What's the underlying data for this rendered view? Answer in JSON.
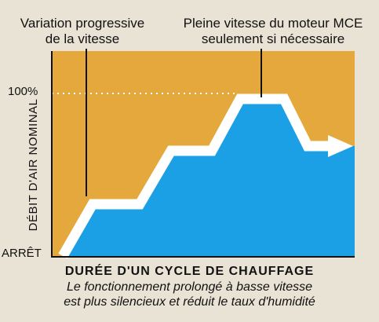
{
  "annotations": {
    "left": "Variation progressive\nde la vitesse",
    "right": "Pleine vitesse du moteur MCE\nseulement si nécessaire"
  },
  "axis": {
    "y_label": "DÉBIT D'AIR NOMINAL",
    "y_top_tick": "100%",
    "y_bottom_tick": "ARRÊT",
    "x_label": "DURÉE D'UN CYCLE DE CHAUFFAGE"
  },
  "caption": "Le fonctionnement prolongé à basse vitesse\nest plus silencieux et réduit le taux d'humidité",
  "chart_data": {
    "type": "area",
    "x": [
      0,
      1,
      2,
      3,
      4,
      5,
      6,
      7,
      8
    ],
    "values": [
      0,
      33,
      33,
      67,
      67,
      100,
      100,
      70,
      70
    ],
    "ylim": [
      0,
      100
    ],
    "xlabel": "DURÉE D'UN CYCLE DE CHAUFFAGE",
    "ylabel": "DÉBIT D'AIR NOMINAL",
    "reference_line": 100
  },
  "colors": {
    "background": "#e9e3d6",
    "plot_area": "#e4a83c",
    "fill": "#1ba0e6",
    "line": "#ffffff",
    "axis": "#111111"
  }
}
